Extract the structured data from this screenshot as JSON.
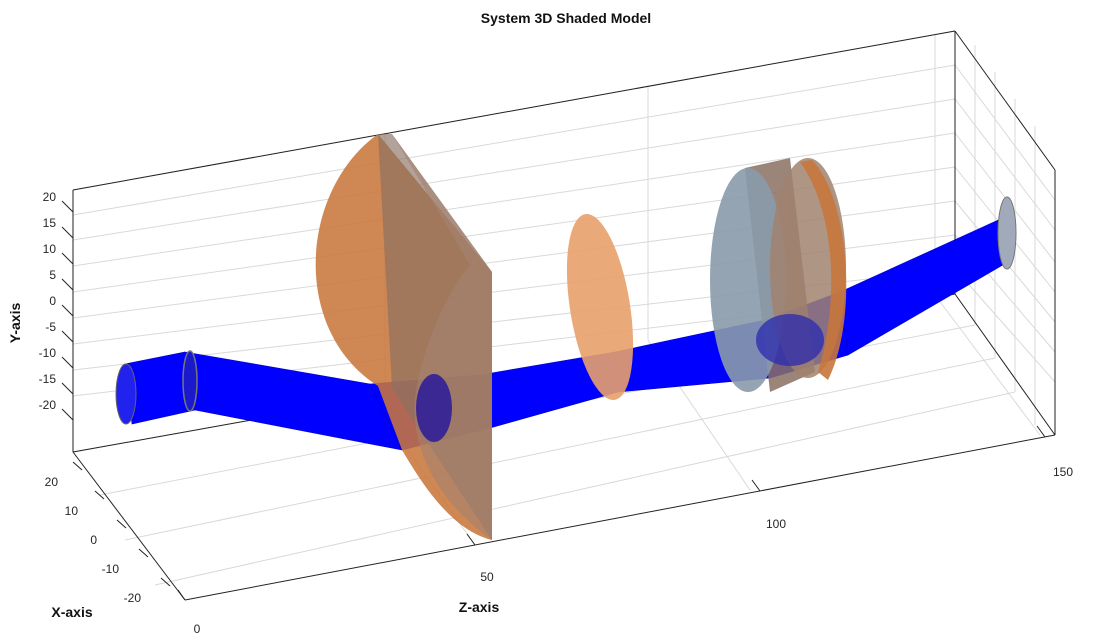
{
  "figure": {
    "title": "System 3D Shaded Model",
    "x_axis_label": "X-axis",
    "y_axis_label": "Y-axis",
    "z_axis_label": "Z-axis",
    "y_ticks": [
      "20",
      "15",
      "10",
      "5",
      "0",
      "-5",
      "-10",
      "-15",
      "-20"
    ],
    "x_ticks": [
      "20",
      "10",
      "0",
      "-10",
      "-20"
    ],
    "z_ticks": [
      "0",
      "50",
      "100",
      "150"
    ]
  },
  "colors": {
    "beam": "#0000ff",
    "lens": "#c8763c",
    "lens_light": "#e8a06a",
    "prism_face": "#8a6a5a",
    "cylinder": "#8a9aaa",
    "grid": "#d9d9d9",
    "box": "#222222"
  }
}
